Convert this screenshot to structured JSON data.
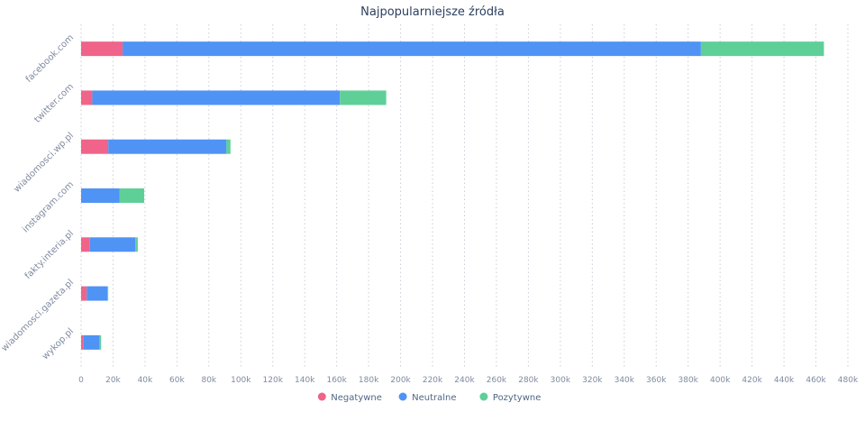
{
  "chart_data": {
    "type": "bar",
    "orientation": "horizontal",
    "stacked": true,
    "title": "Najpopularniejsze źródła",
    "xlabel": "",
    "ylabel": "",
    "xlim": [
      0,
      480000
    ],
    "x_ticks": [
      0,
      20000,
      40000,
      60000,
      80000,
      100000,
      120000,
      140000,
      160000,
      180000,
      200000,
      220000,
      240000,
      260000,
      280000,
      300000,
      320000,
      340000,
      360000,
      380000,
      400000,
      420000,
      440000,
      460000,
      480000
    ],
    "x_tick_labels": [
      "0",
      "20k",
      "40k",
      "60k",
      "80k",
      "100k",
      "120k",
      "140k",
      "160k",
      "180k",
      "200k",
      "220k",
      "240k",
      "260k",
      "280k",
      "300k",
      "320k",
      "340k",
      "360k",
      "380k",
      "400k",
      "420k",
      "440k",
      "460k",
      "480k"
    ],
    "grid": "vertical dotted",
    "legend_position": "bottom-center",
    "categories": [
      "facebook.com",
      "twitter.com",
      "wiadomosci.wp.pl",
      "instagram.com",
      "fakty.interia.pl",
      "wiadomosci.gazeta.pl",
      "wykop.pl"
    ],
    "series": [
      {
        "name": "Negatywne",
        "color": "#f0648a",
        "values": [
          26000,
          7000,
          17000,
          0,
          5500,
          3500,
          1500
        ]
      },
      {
        "name": "Neutralne",
        "color": "#4f93f5",
        "values": [
          362000,
          155000,
          74000,
          24000,
          28500,
          13000,
          10000
        ]
      },
      {
        "name": "Pozytywne",
        "color": "#5fcf98",
        "values": [
          77000,
          29000,
          2500,
          15500,
          1500,
          500,
          1000
        ]
      }
    ]
  }
}
